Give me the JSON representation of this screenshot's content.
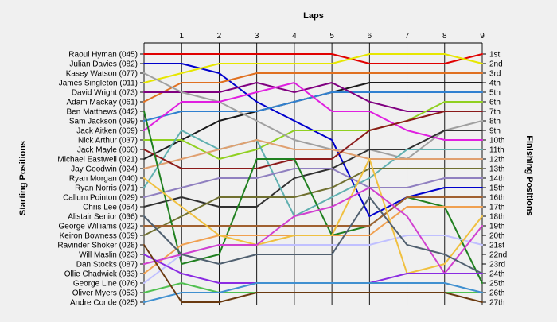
{
  "chart_data": {
    "type": "line",
    "title": "",
    "xlabel": "Laps",
    "ylabel": "Starting Positions",
    "y2label": "Finishing Positions",
    "x": [
      0,
      1,
      2,
      3,
      4,
      5,
      6,
      7,
      8,
      9
    ],
    "xlim": [
      0,
      9
    ],
    "ylim": [
      1,
      27
    ],
    "drivers": [
      "Raoul Hyman (045)",
      "Julian Davies (082)",
      "Kasey Watson (077)",
      "James Singleton (011)",
      "David Wright (073)",
      "Adam Mackay (061)",
      "Ben Matthews (042)",
      "Sam Jackson (099)",
      "Jack Aitken (069)",
      "Nick Arthur (037)",
      "Jack Mayle (060)",
      "Michael Eastwell (021)",
      "Jay Goodwin (024)",
      "Ryan Morgan (040)",
      "Ryan Norris (071)",
      "Callum Pointon (029)",
      "Chris Lee (054)",
      "Alistair Senior (036)",
      "George Williams (022)",
      "Keiron Bowness (059)",
      "Ravinder Shoker (028)",
      "Will Maslin (023)",
      "Dan Stocks (087)",
      "Ollie Chadwick (033)",
      "George Line (076)",
      "Oliver Myers (053)",
      "Andre Conde (025)"
    ],
    "finishing_positions": [
      "1st",
      "2nd",
      "3rd",
      "4th",
      "5th",
      "6th",
      "7th",
      "8th",
      "9th",
      "10th",
      "11th",
      "12th",
      "13th",
      "14th",
      "15th",
      "16th",
      "17th",
      "18th",
      "19th",
      "20th",
      "21st",
      "22nd",
      "23rd",
      "24th",
      "25th",
      "26th",
      "27th"
    ],
    "series": [
      {
        "color": "#e00000",
        "values": [
          1,
          1,
          1,
          1,
          1,
          1,
          2,
          2,
          2,
          1
        ]
      },
      {
        "color": "#0000cc",
        "values": [
          2,
          2,
          3,
          6,
          8,
          10,
          18,
          16,
          15,
          15
        ]
      },
      {
        "color": "#e6e600",
        "values": [
          4,
          3,
          2,
          2,
          2,
          2,
          1,
          1,
          1,
          2
        ]
      },
      {
        "color": "#e07020",
        "values": [
          6,
          4,
          4,
          3,
          3,
          3,
          3,
          3,
          3,
          3
        ]
      },
      {
        "color": "#1a1a1a",
        "values": [
          12,
          10,
          8,
          7,
          6,
          5,
          4,
          4,
          4,
          4
        ]
      },
      {
        "color": "#3080d0",
        "values": [
          8,
          7,
          7,
          7,
          6,
          5,
          5,
          5,
          5,
          5
        ]
      },
      {
        "color": "#800080",
        "values": [
          5,
          5,
          5,
          4,
          5,
          4,
          6,
          7,
          7,
          7
        ]
      },
      {
        "color": "#90d020",
        "values": [
          10,
          10,
          12,
          11,
          9,
          9,
          9,
          8,
          6,
          6
        ]
      },
      {
        "color": "#a0a0a0",
        "values": [
          3,
          5,
          6,
          8,
          10,
          11,
          11,
          12,
          9,
          8
        ]
      },
      {
        "color": "#e020e0",
        "values": [
          9,
          6,
          6,
          5,
          4,
          7,
          7,
          9,
          10,
          10
        ]
      },
      {
        "color": "#303030",
        "values": [
          17,
          16,
          17,
          17,
          14,
          13,
          11,
          11,
          9,
          9
        ]
      },
      {
        "color": "#60b0b0",
        "values": [
          15,
          9,
          11,
          10,
          18,
          16,
          14,
          11,
          11,
          11
        ]
      },
      {
        "color": "#e0a070",
        "values": [
          13,
          12,
          11,
          10,
          11,
          11,
          12,
          12,
          12,
          12
        ]
      },
      {
        "color": "#8b1a1a",
        "values": [
          11,
          13,
          13,
          13,
          12,
          12,
          9,
          8,
          7,
          7
        ]
      },
      {
        "color": "#9080c0",
        "values": [
          16,
          15,
          14,
          14,
          13,
          13,
          15,
          15,
          14,
          14
        ]
      },
      {
        "color": "#707030",
        "values": [
          20,
          18,
          16,
          16,
          16,
          15,
          13,
          13,
          13,
          13
        ]
      },
      {
        "color": "#208020",
        "values": [
          7,
          23,
          22,
          12,
          12,
          20,
          19,
          16,
          17,
          25
        ]
      },
      {
        "color": "#a06030",
        "values": [
          19,
          19,
          19,
          19,
          19,
          19,
          19,
          16,
          16,
          16
        ]
      },
      {
        "color": "#f0a050",
        "values": [
          24,
          21,
          20,
          20,
          20,
          20,
          20,
          17,
          17,
          17
        ]
      },
      {
        "color": "#c0c0ff",
        "values": [
          25,
          22,
          21,
          21,
          21,
          21,
          21,
          20,
          20,
          21
        ]
      },
      {
        "color": "#f0c040",
        "values": [
          14,
          17,
          20,
          21,
          20,
          20,
          12,
          24,
          23,
          18
        ]
      },
      {
        "color": "#d040d0",
        "values": [
          23,
          22,
          21,
          21,
          18,
          17,
          15,
          18,
          24,
          19
        ]
      },
      {
        "color": "#506070",
        "values": [
          18,
          22,
          23,
          22,
          22,
          22,
          16,
          21,
          22,
          24
        ]
      },
      {
        "color": "#8a2be2",
        "values": [
          22,
          24,
          25,
          25,
          25,
          25,
          25,
          24,
          24,
          24
        ]
      },
      {
        "color": "#50c050",
        "values": [
          26,
          25,
          26,
          26,
          26,
          26,
          26,
          26,
          26,
          26
        ]
      },
      {
        "color": "#4090d0",
        "values": [
          27,
          26,
          26,
          25,
          25,
          25,
          25,
          25,
          25,
          26
        ]
      },
      {
        "color": "#6a3a10",
        "values": [
          21,
          27,
          27,
          26,
          26,
          26,
          26,
          26,
          26,
          27
        ]
      }
    ]
  }
}
